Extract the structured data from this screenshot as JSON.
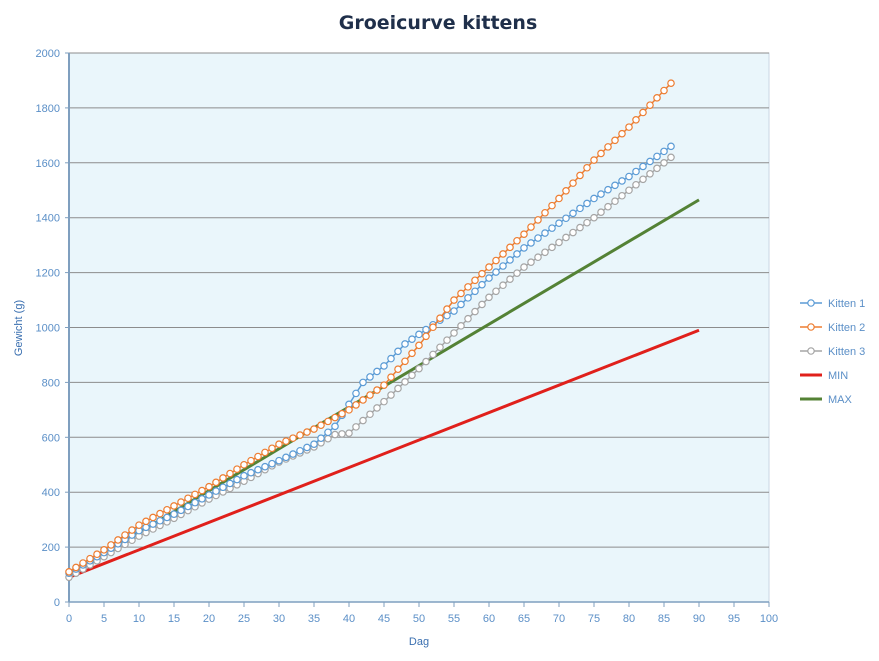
{
  "chart_data": {
    "type": "line",
    "title": "Groeicurve kittens",
    "xlabel": "Dag",
    "ylabel": "Gewicht (g)",
    "xlim": [
      0,
      100
    ],
    "ylim": [
      0,
      2000
    ],
    "x_ticks": [
      "0",
      "5",
      "10",
      "15",
      "20",
      "25",
      "30",
      "35",
      "40",
      "45",
      "50",
      "55",
      "60",
      "65",
      "70",
      "75",
      "80",
      "85",
      "90",
      "95",
      "100"
    ],
    "y_ticks": [
      "0",
      "200",
      "400",
      "600",
      "800",
      "1000",
      "1200",
      "1400",
      "1600",
      "1800",
      "2000"
    ],
    "grid": true,
    "legend_position": "right",
    "plot_background": "#eaf6fb",
    "series": [
      {
        "name": "Kitten 1",
        "color": "#5b9bd5",
        "marker": "circle",
        "x": [
          0,
          5,
          10,
          15,
          20,
          25,
          30,
          35,
          38,
          40,
          42,
          45,
          48,
          50,
          52,
          55,
          60,
          65,
          70,
          75,
          80,
          86
        ],
        "y": [
          105,
          180,
          260,
          320,
          390,
          460,
          515,
          575,
          640,
          720,
          800,
          860,
          940,
          975,
          1010,
          1060,
          1180,
          1290,
          1380,
          1470,
          1550,
          1660
        ]
      },
      {
        "name": "Kitten 2",
        "color": "#ed7d31",
        "marker": "circle",
        "x": [
          0,
          5,
          10,
          15,
          20,
          25,
          30,
          35,
          40,
          45,
          50,
          55,
          60,
          65,
          70,
          75,
          80,
          86
        ],
        "y": [
          110,
          190,
          280,
          350,
          420,
          500,
          575,
          630,
          700,
          790,
          935,
          1100,
          1220,
          1340,
          1470,
          1610,
          1730,
          1890
        ]
      },
      {
        "name": "Kitten 3",
        "color": "#a5a5a5",
        "marker": "circle",
        "x": [
          0,
          5,
          10,
          15,
          20,
          25,
          30,
          35,
          38,
          40,
          45,
          50,
          55,
          60,
          65,
          70,
          75,
          80,
          86
        ],
        "y": [
          90,
          165,
          240,
          305,
          375,
          440,
          510,
          565,
          610,
          615,
          730,
          850,
          980,
          1110,
          1220,
          1310,
          1400,
          1500,
          1620
        ]
      },
      {
        "name": "MIN",
        "color": "#e0201b",
        "marker": "none",
        "x": [
          0,
          90
        ],
        "y": [
          90,
          990
        ]
      },
      {
        "name": "MAX",
        "color": "#548235",
        "marker": "none",
        "x": [
          0,
          90
        ],
        "y": [
          100,
          1465
        ],
        "bend_x": 37,
        "bend_y": 665
      }
    ]
  }
}
